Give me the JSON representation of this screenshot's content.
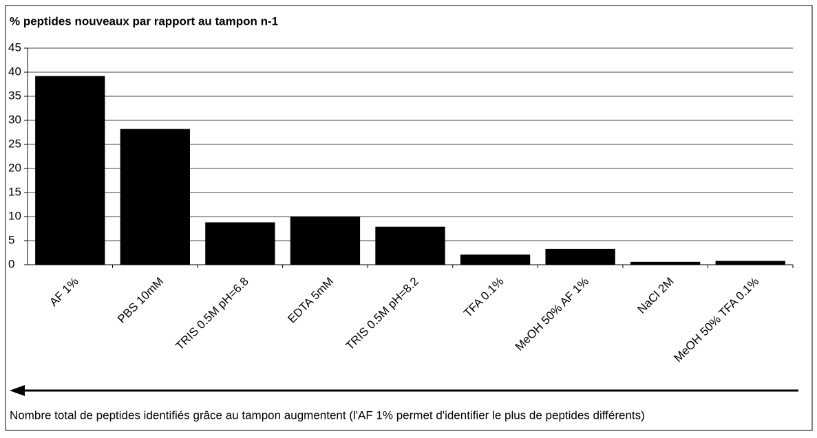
{
  "chart_data": {
    "type": "bar",
    "title": "% peptides nouveaux par rapport au tampon n-1",
    "categories": [
      "AF 1%",
      "PBS 10mM",
      "TRIS 0.5M pH=6.8",
      "EDTA 5mM",
      "TRIS 0.5M pH=8.2",
      "TFA 0.1%",
      "MeOH 50% AF 1%",
      "NaCl 2M",
      "MeOH 50% TFA 0.1%"
    ],
    "values": [
      39.2,
      28.2,
      8.8,
      10,
      7.9,
      2.1,
      3.3,
      0.6,
      0.8
    ],
    "color": "#000000",
    "ylim": [
      0,
      45
    ],
    "yticks": [
      0,
      5,
      10,
      15,
      20,
      25,
      30,
      35,
      40,
      45
    ],
    "grid": true,
    "annotation": "Nombre total de peptides identifiés grâce au tampon augmentent (l'AF 1% permet d'identifier le plus de peptides différents)"
  }
}
